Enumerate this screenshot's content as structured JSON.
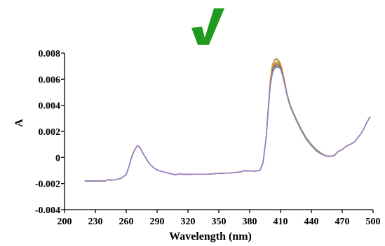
{
  "chart_data": {
    "type": "line",
    "xlabel": "Wavelength (nm)",
    "ylabel": "A",
    "xlim": [
      200,
      500
    ],
    "ylim": [
      -0.004,
      0.008
    ],
    "x_ticks": [
      200,
      230,
      260,
      290,
      320,
      350,
      380,
      410,
      440,
      470,
      500
    ],
    "x_tick_labels": [
      "200",
      "230",
      "260",
      "290",
      "320",
      "350",
      "380",
      "410",
      "440",
      "470",
      "500"
    ],
    "y_ticks": [
      -0.004,
      -0.002,
      0,
      0.002,
      0.004,
      0.006,
      0.008
    ],
    "y_tick_labels": [
      "-0.004",
      "-0.002",
      "0",
      "0.002",
      "0.004",
      "0.006",
      "0.008"
    ],
    "grid": false,
    "legend": "none",
    "annotation": {
      "icon": "check-mark-icon",
      "color": "#1e9a1e"
    },
    "x": [
      220,
      230,
      240,
      243,
      245,
      250,
      255,
      260,
      263,
      266,
      269,
      271,
      273,
      275,
      278,
      281,
      284,
      287,
      290,
      295,
      300,
      305,
      308,
      312,
      316,
      320,
      330,
      340,
      350,
      360,
      370,
      375,
      380,
      385,
      390,
      393,
      396,
      398,
      400,
      402,
      404,
      406,
      408,
      410,
      412,
      414,
      416,
      418,
      420,
      425,
      430,
      435,
      440,
      445,
      450,
      455,
      460,
      463,
      465,
      467,
      470,
      473,
      476,
      479,
      482,
      485,
      488,
      491,
      494,
      497
    ],
    "series": [
      {
        "color": "#4472c4",
        "values": [
          -0.0018,
          -0.00181,
          -0.0018,
          -0.00168,
          -0.00175,
          -0.0017,
          -0.0016,
          -0.0013,
          -0.0006,
          0.0002,
          0.0007,
          0.0009,
          0.0008,
          0.0005,
          0.0001,
          -0.0003,
          -0.0006,
          -0.0008,
          -0.00095,
          -0.00108,
          -0.00118,
          -0.00128,
          -0.00132,
          -0.00125,
          -0.0013,
          -0.00129,
          -0.00128,
          -0.00128,
          -0.00122,
          -0.0012,
          -0.00112,
          -0.00102,
          -0.00102,
          -0.00106,
          -0.00098,
          -0.0004,
          0.0015,
          0.0035,
          0.0055,
          0.0065,
          0.00685,
          0.00695,
          0.007,
          0.0068,
          0.0063,
          0.0056,
          0.0049,
          0.0043,
          0.0038,
          0.0029,
          0.0021,
          0.0014,
          0.0009,
          0.0005,
          0.00025,
          0.0001,
          0.0001,
          0.00018,
          0.0004,
          0.0005,
          0.0006,
          0.0008,
          0.00095,
          0.00105,
          0.0012,
          0.0015,
          0.0018,
          0.0022,
          0.0027,
          0.0031
        ]
      },
      {
        "color": "#e8663f",
        "values": [
          -0.0018,
          -0.00181,
          -0.0018,
          -0.00168,
          -0.00175,
          -0.0017,
          -0.0016,
          -0.0013,
          -0.0006,
          0.0002,
          0.0007,
          0.0009,
          0.0008,
          0.0005,
          0.0001,
          -0.0003,
          -0.0006,
          -0.0008,
          -0.00095,
          -0.00108,
          -0.00118,
          -0.00128,
          -0.00132,
          -0.00125,
          -0.0013,
          -0.00129,
          -0.00128,
          -0.00128,
          -0.00122,
          -0.0012,
          -0.00112,
          -0.00102,
          -0.00102,
          -0.00106,
          -0.00098,
          -0.0004,
          0.0015,
          0.0036,
          0.0057,
          0.0068,
          0.0072,
          0.0073,
          0.0073,
          0.0071,
          0.0065,
          0.0058,
          0.005,
          0.0044,
          0.0039,
          0.003,
          0.0022,
          0.0015,
          0.001,
          0.0006,
          0.0003,
          0.0001,
          0.0001,
          0.0002,
          0.0004,
          0.0005,
          0.0006,
          0.0008,
          0.00095,
          0.00105,
          0.0012,
          0.0015,
          0.0018,
          0.0022,
          0.0027,
          0.0031
        ]
      },
      {
        "color": "#a5a5a5",
        "values": [
          -0.0018,
          -0.00181,
          -0.0018,
          -0.00168,
          -0.00175,
          -0.0017,
          -0.0016,
          -0.0013,
          -0.0006,
          0.0002,
          0.0007,
          0.0009,
          0.0008,
          0.0005,
          0.0001,
          -0.0003,
          -0.0006,
          -0.0008,
          -0.00095,
          -0.00108,
          -0.00118,
          -0.00128,
          -0.00132,
          -0.00125,
          -0.0013,
          -0.00129,
          -0.00128,
          -0.00128,
          -0.00122,
          -0.0012,
          -0.00112,
          -0.00102,
          -0.00102,
          -0.00106,
          -0.00098,
          -0.0004,
          0.0015,
          0.0037,
          0.0059,
          0.0071,
          0.0075,
          0.0076,
          0.0075,
          0.0072,
          0.0066,
          0.0058,
          0.005,
          0.0044,
          0.0039,
          0.003,
          0.0022,
          0.0015,
          0.001,
          0.0006,
          0.0003,
          0.0001,
          0.0001,
          0.0002,
          0.0004,
          0.0005,
          0.0006,
          0.0008,
          0.00095,
          0.00105,
          0.0012,
          0.0015,
          0.0018,
          0.0022,
          0.0027,
          0.0031
        ]
      },
      {
        "color": "#c8a800",
        "values": [
          -0.0018,
          -0.00181,
          -0.0018,
          -0.00168,
          -0.00175,
          -0.0017,
          -0.0016,
          -0.0013,
          -0.0006,
          0.0002,
          0.0007,
          0.0009,
          0.0008,
          0.0005,
          0.0001,
          -0.0003,
          -0.0006,
          -0.0008,
          -0.00095,
          -0.00108,
          -0.00118,
          -0.00128,
          -0.00132,
          -0.00125,
          -0.0013,
          -0.00129,
          -0.00128,
          -0.00128,
          -0.00122,
          -0.0012,
          -0.00112,
          -0.00102,
          -0.00102,
          -0.00106,
          -0.00098,
          -0.0004,
          0.0015,
          0.0037,
          0.0058,
          0.007,
          0.0074,
          0.0075,
          0.0074,
          0.0072,
          0.0066,
          0.0058,
          0.005,
          0.0044,
          0.0039,
          0.003,
          0.0022,
          0.0015,
          0.001,
          0.0006,
          0.0003,
          0.0001,
          0.0001,
          0.0002,
          0.0004,
          0.0005,
          0.0006,
          0.0008,
          0.00095,
          0.00105,
          0.0012,
          0.0015,
          0.0018,
          0.0022,
          0.0027,
          0.0031
        ]
      },
      {
        "color": "#5b9bd5",
        "values": [
          -0.0018,
          -0.00181,
          -0.0018,
          -0.00168,
          -0.00175,
          -0.0017,
          -0.0016,
          -0.0013,
          -0.0006,
          0.0002,
          0.0007,
          0.0009,
          0.0008,
          0.0005,
          0.0001,
          -0.0003,
          -0.0006,
          -0.0008,
          -0.00095,
          -0.00108,
          -0.00118,
          -0.00128,
          -0.00132,
          -0.00125,
          -0.0013,
          -0.00129,
          -0.00128,
          -0.00128,
          -0.00122,
          -0.0012,
          -0.00112,
          -0.00102,
          -0.00102,
          -0.00106,
          -0.00098,
          -0.0004,
          0.0015,
          0.0035,
          0.0054,
          0.0064,
          0.0068,
          0.0069,
          0.0069,
          0.0068,
          0.0063,
          0.0056,
          0.0049,
          0.0043,
          0.0038,
          0.0029,
          0.0021,
          0.0014,
          0.0009,
          0.0005,
          0.00025,
          0.0001,
          0.0001,
          0.00018,
          0.0004,
          0.0005,
          0.0006,
          0.0008,
          0.00095,
          0.00105,
          0.0012,
          0.0015,
          0.0018,
          0.0022,
          0.0027,
          0.0031
        ]
      },
      {
        "color": "#70ad47",
        "values": [
          -0.0018,
          -0.00181,
          -0.0018,
          -0.00168,
          -0.00175,
          -0.0017,
          -0.0016,
          -0.0013,
          -0.0006,
          0.0002,
          0.0007,
          0.0009,
          0.0008,
          0.0005,
          0.0001,
          -0.0003,
          -0.0006,
          -0.0008,
          -0.00095,
          -0.00108,
          -0.00118,
          -0.00128,
          -0.00132,
          -0.00125,
          -0.0013,
          -0.00129,
          -0.00128,
          -0.00128,
          -0.00122,
          -0.0012,
          -0.00112,
          -0.00102,
          -0.00102,
          -0.00106,
          -0.00098,
          -0.0004,
          0.0015,
          0.0036,
          0.0056,
          0.0067,
          0.0071,
          0.0072,
          0.0072,
          0.007,
          0.0065,
          0.0057,
          0.005,
          0.0044,
          0.0039,
          0.003,
          0.0022,
          0.0015,
          0.001,
          0.0006,
          0.0003,
          0.0001,
          0.0001,
          0.0002,
          0.0004,
          0.0005,
          0.0006,
          0.0008,
          0.00095,
          0.00105,
          0.0012,
          0.0015,
          0.0018,
          0.0022,
          0.0027,
          0.0031
        ]
      },
      {
        "color": "#1f9ea8",
        "values": [
          -0.0018,
          -0.00181,
          -0.0018,
          -0.00168,
          -0.00175,
          -0.0017,
          -0.0016,
          -0.0013,
          -0.0006,
          0.0002,
          0.0007,
          0.0009,
          0.0008,
          0.0005,
          0.0001,
          -0.0003,
          -0.0006,
          -0.0008,
          -0.00095,
          -0.00108,
          -0.00118,
          -0.00128,
          -0.00132,
          -0.00125,
          -0.0013,
          -0.00129,
          -0.00128,
          -0.00128,
          -0.00122,
          -0.0012,
          -0.00112,
          -0.00102,
          -0.00102,
          -0.00106,
          -0.00098,
          -0.0004,
          0.0015,
          0.0035,
          0.0055,
          0.0065,
          0.0069,
          0.007,
          0.007,
          0.0069,
          0.0064,
          0.0057,
          0.0049,
          0.0043,
          0.0038,
          0.0029,
          0.0021,
          0.0014,
          0.0009,
          0.0005,
          0.00025,
          0.0001,
          0.0001,
          0.00018,
          0.0004,
          0.0005,
          0.0006,
          0.0008,
          0.00095,
          0.00105,
          0.0012,
          0.0015,
          0.0018,
          0.0022,
          0.0027,
          0.0031
        ]
      },
      {
        "color": "#c0392b",
        "values": [
          -0.0018,
          -0.00181,
          -0.0018,
          -0.00168,
          -0.00175,
          -0.0017,
          -0.0016,
          -0.0013,
          -0.0006,
          0.0002,
          0.0007,
          0.0009,
          0.0008,
          0.0005,
          0.0001,
          -0.0003,
          -0.0006,
          -0.0008,
          -0.00095,
          -0.00108,
          -0.00118,
          -0.00128,
          -0.00132,
          -0.00125,
          -0.0013,
          -0.00129,
          -0.00128,
          -0.00128,
          -0.00122,
          -0.0012,
          -0.00112,
          -0.00102,
          -0.00102,
          -0.00106,
          -0.00098,
          -0.0004,
          0.0015,
          0.0036,
          0.0056,
          0.0066,
          0.007,
          0.0071,
          0.0071,
          0.0069,
          0.0064,
          0.0057,
          0.0049,
          0.0043,
          0.0038,
          0.0029,
          0.0021,
          0.0014,
          0.0009,
          0.0005,
          0.00025,
          0.0001,
          0.0001,
          0.00018,
          0.0004,
          0.0005,
          0.0006,
          0.0008,
          0.00095,
          0.00105,
          0.0012,
          0.0015,
          0.0018,
          0.0022,
          0.0027,
          0.0031
        ]
      },
      {
        "color": "#9e7fd0",
        "values": [
          -0.0018,
          -0.00181,
          -0.0018,
          -0.00168,
          -0.00175,
          -0.0017,
          -0.0016,
          -0.0013,
          -0.0006,
          0.0002,
          0.0007,
          0.0009,
          0.0008,
          0.0005,
          0.0001,
          -0.0003,
          -0.0006,
          -0.0008,
          -0.00095,
          -0.00108,
          -0.00118,
          -0.00128,
          -0.00132,
          -0.00125,
          -0.0013,
          -0.00129,
          -0.00128,
          -0.00128,
          -0.00122,
          -0.0012,
          -0.00112,
          -0.00102,
          -0.00102,
          -0.00106,
          -0.00098,
          -0.0004,
          0.0015,
          0.0035,
          0.0055,
          0.0065,
          0.0069,
          0.007,
          0.007,
          0.0068,
          0.0063,
          0.0056,
          0.0049,
          0.0043,
          0.0038,
          0.0029,
          0.0021,
          0.0014,
          0.0009,
          0.0005,
          0.00025,
          0.0001,
          0.0001,
          0.00018,
          0.0004,
          0.0005,
          0.0006,
          0.0008,
          0.00095,
          0.00105,
          0.0012,
          0.0015,
          0.0018,
          0.0022,
          0.0027,
          0.0031
        ]
      }
    ]
  }
}
